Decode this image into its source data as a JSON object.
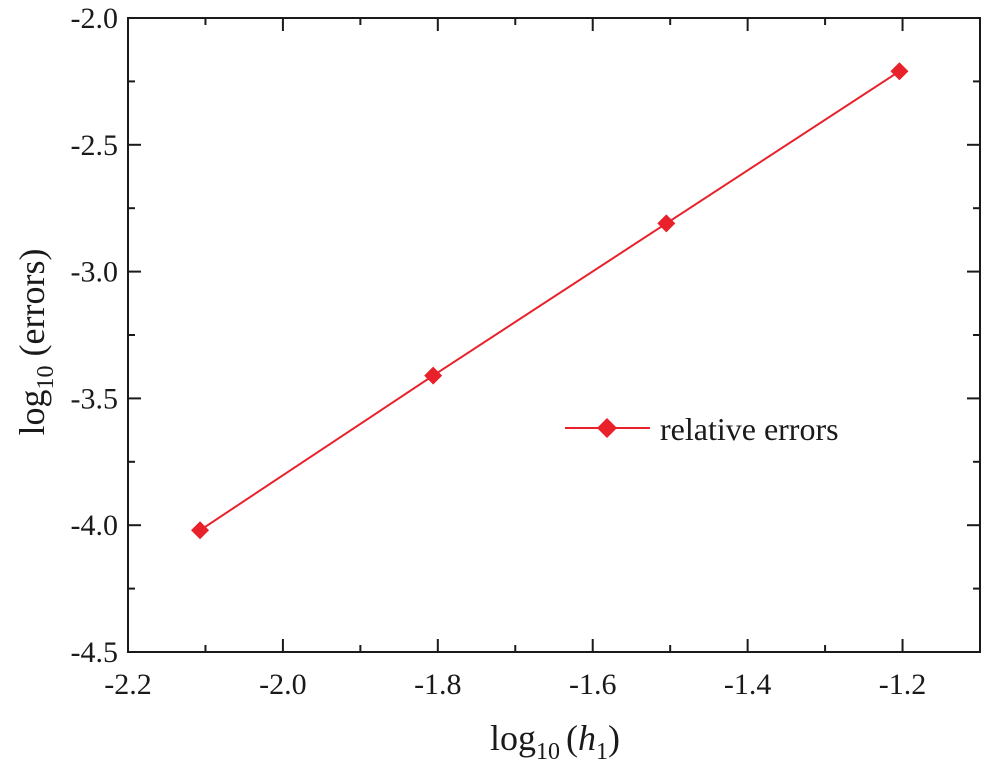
{
  "chart_data": {
    "type": "line",
    "title": "",
    "xlabel_main": "log",
    "xlabel_sub": "10",
    "xlabel_paren_open": "(",
    "xlabel_var": "h",
    "xlabel_var_sub": "1",
    "xlabel_paren_close": ")",
    "ylabel_main": "log",
    "ylabel_sub": "10",
    "ylabel_rest": " (errors)",
    "xlim": [
      -2.2,
      -1.1
    ],
    "ylim": [
      -4.5,
      -2.0
    ],
    "xticks": [
      -2.2,
      -2.0,
      -1.8,
      -1.6,
      -1.4,
      -1.2
    ],
    "xtick_labels": [
      "-2.2",
      "-2.0",
      "-1.8",
      "-1.6",
      "-1.4",
      "-1.2"
    ],
    "yticks": [
      -4.5,
      -4.0,
      -3.5,
      -3.0,
      -2.5,
      -2.0
    ],
    "ytick_labels": [
      "-4.5",
      "-4.0",
      "-3.5",
      "-3.0",
      "-2.5",
      "-2.0"
    ],
    "grid": false,
    "legend_position": "center-right",
    "series": [
      {
        "name": "relative errors",
        "color": "#e8212a",
        "marker": "diamond",
        "x": [
          -2.107,
          -1.806,
          -1.505,
          -1.204
        ],
        "y": [
          -4.02,
          -3.41,
          -2.81,
          -2.21
        ]
      }
    ]
  }
}
